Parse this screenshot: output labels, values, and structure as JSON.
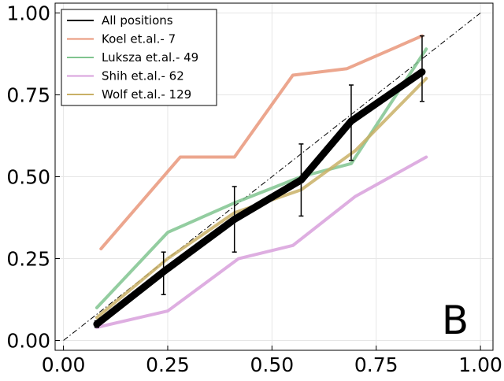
{
  "chart_data": {
    "type": "line",
    "title": "",
    "xlabel": "",
    "ylabel": "",
    "xlim": [
      -0.02,
      1.03
    ],
    "ylim": [
      -0.03,
      1.03
    ],
    "grid": true,
    "legend_position": "top-left",
    "panel_label": "B",
    "x_ticks": [
      "0.00",
      "0.25",
      "0.50",
      "0.75",
      "1.00"
    ],
    "y_ticks": [
      "0.00",
      "0.25",
      "0.50",
      "0.75",
      "1.00"
    ],
    "diagonal": {
      "style": "dash-dot",
      "color": "#000000",
      "from": [
        0,
        0
      ],
      "to": [
        1,
        1
      ]
    },
    "series": [
      {
        "name": "Koel et.al.- 7",
        "color": "#e9967a",
        "x": [
          0.09,
          0.28,
          0.41,
          0.55,
          0.68,
          0.86
        ],
        "y": [
          0.28,
          0.56,
          0.56,
          0.81,
          0.83,
          0.93
        ]
      },
      {
        "name": "Luksza et.al.- 49",
        "color": "#80c48f",
        "x": [
          0.08,
          0.25,
          0.41,
          0.57,
          0.69,
          0.87
        ],
        "y": [
          0.1,
          0.33,
          0.42,
          0.5,
          0.54,
          0.89
        ]
      },
      {
        "name": "Shih et.al.- 62",
        "color": "#d8a0dc",
        "x": [
          0.08,
          0.25,
          0.42,
          0.55,
          0.7,
          0.87
        ],
        "y": [
          0.04,
          0.09,
          0.25,
          0.29,
          0.44,
          0.56
        ]
      },
      {
        "name": "Wolf et.al.- 129",
        "color": "#c9b066",
        "x": [
          0.08,
          0.25,
          0.41,
          0.57,
          0.7,
          0.87
        ],
        "y": [
          0.07,
          0.25,
          0.39,
          0.46,
          0.58,
          0.8
        ]
      },
      {
        "name": "All positions",
        "color": "#000000",
        "x": [
          0.08,
          0.24,
          0.41,
          0.57,
          0.69,
          0.86
        ],
        "y": [
          0.05,
          0.21,
          0.37,
          0.49,
          0.67,
          0.82
        ],
        "y_err_low": [
          0.04,
          0.14,
          0.27,
          0.38,
          0.55,
          0.73
        ],
        "y_err_high": [
          0.06,
          0.27,
          0.47,
          0.6,
          0.78,
          0.93
        ]
      }
    ]
  }
}
